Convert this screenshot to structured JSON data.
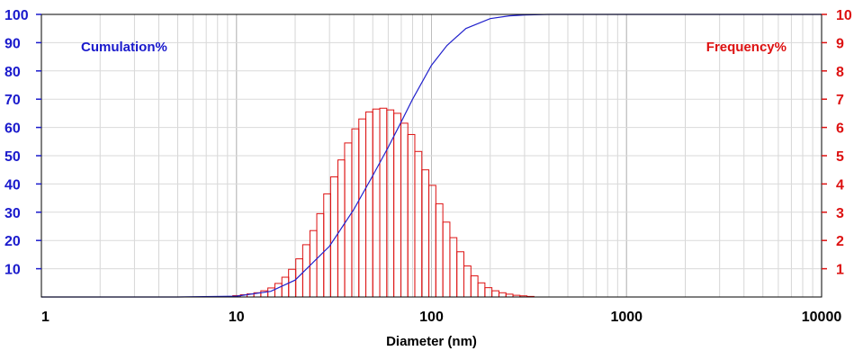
{
  "chart_data": {
    "type": "bar",
    "xlabel": "Diameter (nm)",
    "x_scale": "log",
    "xlim": [
      1,
      10000
    ],
    "x_ticks": [
      "1",
      "10",
      "100",
      "1000",
      "10000"
    ],
    "left_axis": {
      "label": "Cumulation%",
      "ylim": [
        0,
        100
      ],
      "ticks": [
        "10",
        "20",
        "30",
        "40",
        "50",
        "60",
        "70",
        "80",
        "90",
        "100"
      ],
      "color": "#1a1acc"
    },
    "right_axis": {
      "label": "Frequency%",
      "ylim": [
        0,
        10
      ],
      "ticks": [
        "1",
        "2",
        "3",
        "4",
        "5",
        "6",
        "7",
        "8",
        "9",
        "10"
      ],
      "color": "#dd1111"
    },
    "grid": true,
    "bin_centers": [
      10.0,
      10.9,
      11.8,
      12.8,
      13.9,
      15.1,
      16.4,
      17.8,
      19.3,
      21.0,
      22.8,
      24.8,
      26.9,
      29.2,
      31.7,
      34.5,
      37.4,
      40.7,
      44.2,
      48.0,
      52.1,
      56.6,
      61.5,
      66.8,
      72.6,
      78.8,
      85.6,
      93.0,
      101.0,
      109.7,
      119.2,
      129.5,
      140.6,
      152.8,
      166.0,
      180.3,
      195.8,
      212.7,
      231.1,
      251.0,
      272.7,
      296.2,
      321.7
    ],
    "series": [
      {
        "name": "Frequency%",
        "axis": "right",
        "values": [
          0.05,
          0.08,
          0.11,
          0.15,
          0.22,
          0.32,
          0.48,
          0.7,
          0.98,
          1.35,
          1.85,
          2.35,
          2.95,
          3.65,
          4.25,
          4.85,
          5.45,
          5.95,
          6.3,
          6.55,
          6.65,
          6.68,
          6.62,
          6.5,
          6.15,
          5.75,
          5.15,
          4.5,
          3.95,
          3.3,
          2.65,
          2.1,
          1.6,
          1.1,
          0.75,
          0.5,
          0.33,
          0.22,
          0.15,
          0.1,
          0.06,
          0.04,
          0.02
        ],
        "color": "#dd1111"
      },
      {
        "name": "Cumulation%",
        "axis": "left",
        "type": "line",
        "x": [
          1,
          5,
          10,
          15,
          20,
          30,
          40,
          50,
          60,
          70,
          80,
          100,
          120,
          150,
          200,
          250,
          300,
          400,
          10000
        ],
        "values": [
          0,
          0,
          0.3,
          2,
          6,
          18,
          31,
          43,
          53,
          62,
          70,
          82,
          89,
          95,
          98.5,
          99.5,
          99.8,
          100,
          100
        ],
        "color": "#2222cc"
      }
    ]
  }
}
